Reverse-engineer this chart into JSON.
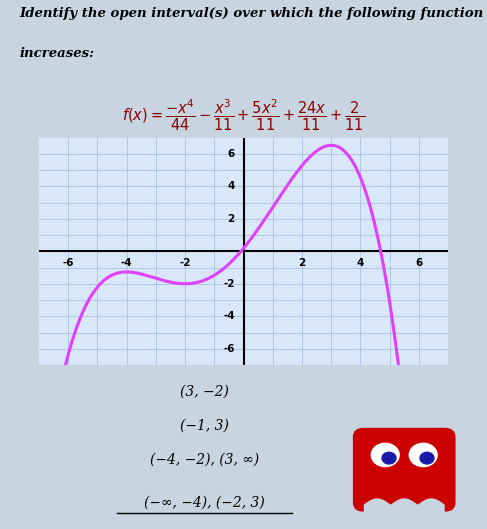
{
  "title_line1": "Identify the open interval(s) over which the following function",
  "title_line2": "increases:",
  "xlim": [
    -7,
    7
  ],
  "ylim": [
    -7,
    7
  ],
  "xticks": [
    -6,
    -4,
    -2,
    2,
    4,
    6
  ],
  "yticks": [
    -6,
    -4,
    -2,
    2,
    4,
    6
  ],
  "curve_color": "#e040fb",
  "curve_linewidth": 2.2,
  "grid_color": "#a0b8e0",
  "grid_linewidth": 0.5,
  "axis_color": "#000000",
  "bg_color": "#d8e8f8",
  "answer_options": [
    "(3, −2)",
    "(−1, 3)",
    "(−4, −2), (3, ∞)",
    "(−∞, −4), (−2, 3)"
  ],
  "underline_option_index": 3,
  "ghost_color": "#cc0000",
  "fig_bg": "#c8d4e0"
}
